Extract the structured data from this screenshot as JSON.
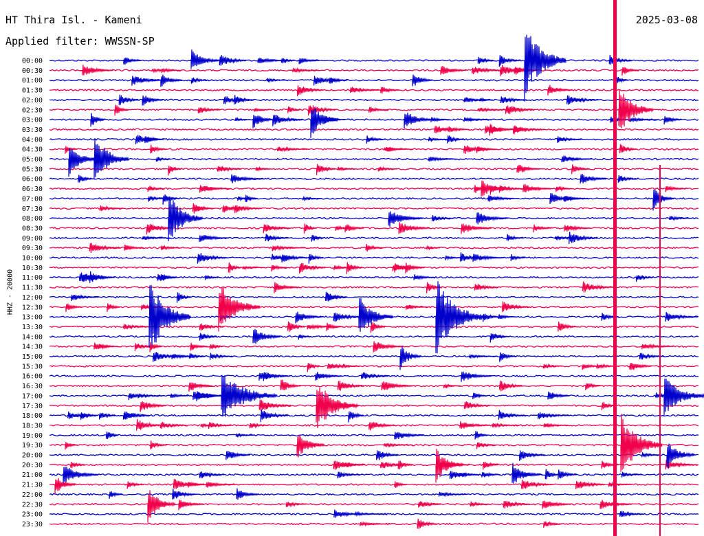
{
  "header": {
    "station": "HT Thira Isl. - Kameni",
    "date": "2025-03-08",
    "filter": "Applied filter: WWSSN-SP"
  },
  "channel_label": "HHZ - 20000",
  "colors": {
    "even_trace": "#0000cc",
    "odd_trace": "#f0004a"
  },
  "time_labels": [
    "00:00",
    "00:30",
    "01:00",
    "01:30",
    "02:00",
    "02:30",
    "03:00",
    "03:30",
    "04:00",
    "04:30",
    "05:00",
    "05:30",
    "06:00",
    "06:30",
    "07:00",
    "07:30",
    "08:00",
    "08:30",
    "09:00",
    "09:30",
    "10:00",
    "10:30",
    "11:00",
    "11:30",
    "12:00",
    "12:30",
    "13:00",
    "13:30",
    "14:00",
    "14:30",
    "15:00",
    "15:30",
    "16:00",
    "16:30",
    "17:00",
    "17:30",
    "18:00",
    "18:30",
    "19:00",
    "19:30",
    "20:00",
    "20:30",
    "21:00",
    "21:30",
    "22:00",
    "22:30",
    "23:00",
    "23:30"
  ]
}
